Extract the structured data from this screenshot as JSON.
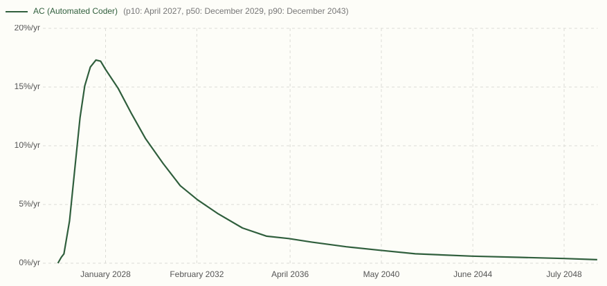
{
  "chart_data": {
    "type": "line",
    "legend_note": "(p10: April 2027, p50: December 2029, p90: December 2043)",
    "series": [
      {
        "name": "AC (Automated Coder)",
        "color": "#2f5e3c",
        "x": [
          2025.87,
          2026.02,
          2026.14,
          2026.39,
          2026.64,
          2026.86,
          2027.07,
          2027.32,
          2027.57,
          2027.78,
          2028.0,
          2028.56,
          2029.17,
          2029.79,
          2030.57,
          2031.34,
          2032.11,
          2033.04,
          2034.12,
          2035.2,
          2036.19,
          2037.21,
          2038.76,
          2040.28,
          2041.85,
          2044.39,
          2046.49,
          2048.5,
          2049.98
        ],
        "values": [
          0,
          0.5,
          0.8,
          3.6,
          8.3,
          12.4,
          15.1,
          16.7,
          17.3,
          17.2,
          16.5,
          14.9,
          12.7,
          10.6,
          8.5,
          6.6,
          5.4,
          4.2,
          3.0,
          2.3,
          2.1,
          1.8,
          1.4,
          1.1,
          0.8,
          0.6,
          0.5,
          0.4,
          0.3
        ]
      }
    ],
    "xlim": [
      2025.2,
      2050.0
    ],
    "xticks": [
      {
        "value": 2028.0,
        "label": "January 2028"
      },
      {
        "value": 2032.08,
        "label": "February 2032"
      },
      {
        "value": 2036.25,
        "label": "April 2036"
      },
      {
        "value": 2040.33,
        "label": "May 2040"
      },
      {
        "value": 2044.42,
        "label": "June 2044"
      },
      {
        "value": 2048.5,
        "label": "July 2048"
      }
    ],
    "ylim": [
      0,
      20
    ],
    "yticks": [
      {
        "value": 0,
        "label": "0%/yr"
      },
      {
        "value": 5,
        "label": "5%/yr"
      },
      {
        "value": 10,
        "label": "10%/yr"
      },
      {
        "value": 15,
        "label": "15%/yr"
      },
      {
        "value": 20,
        "label": "20%/yr"
      }
    ],
    "grid": true
  }
}
